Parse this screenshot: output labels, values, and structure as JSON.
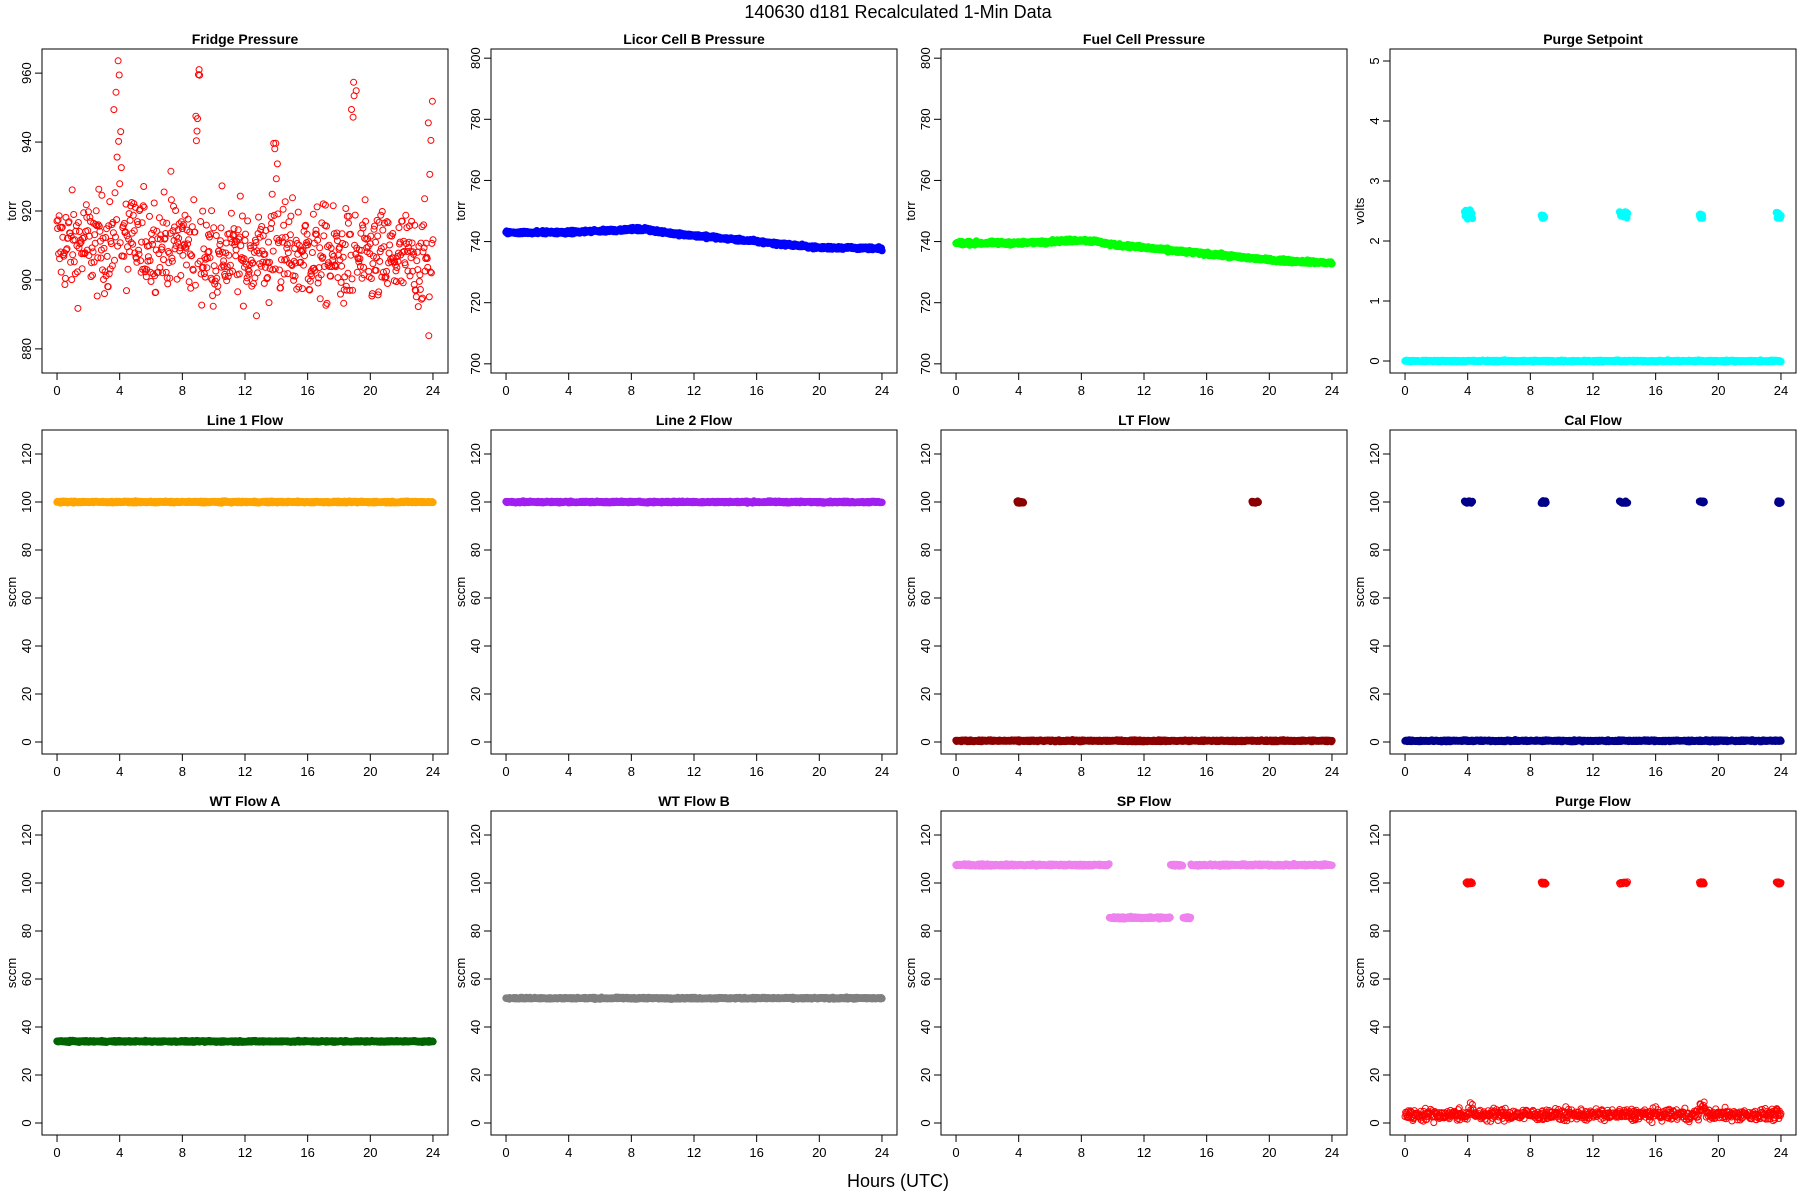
{
  "figure": {
    "title": "140630   d181   Recalculated 1-Min Data",
    "xlabel": "Hours (UTC)"
  },
  "chart_data": [
    {
      "type": "scatter",
      "title": "Fridge Pressure",
      "ylabel": "torr",
      "color": "#ff0000",
      "marker": "open",
      "ylim": [
        873,
        967
      ],
      "yticks": [
        880,
        900,
        920,
        940,
        960
      ],
      "xlim": [
        0,
        24
      ],
      "xticks": [
        0,
        4,
        8,
        12,
        16,
        20,
        24
      ],
      "pattern": {
        "kind": "noisy",
        "base": 910,
        "noise": 7,
        "trend": [
          [
            0,
            910
          ],
          [
            8,
            911
          ],
          [
            10,
            907
          ],
          [
            16,
            908
          ],
          [
            18,
            906
          ],
          [
            24,
            906
          ]
        ],
        "spikes": [
          [
            3.6,
            4.1,
            [
              925,
              966
            ]
          ],
          [
            8.8,
            9.1,
            [
              935,
              962
            ]
          ],
          [
            13.7,
            14.1,
            [
              915,
              941
            ]
          ],
          [
            18.8,
            19.1,
            [
              915,
              959
            ]
          ],
          [
            23.7,
            24.0,
            [
              880,
              954
            ]
          ]
        ]
      }
    },
    {
      "type": "scatter",
      "title": "Licor Cell B Pressure",
      "ylabel": "torr",
      "color": "#0000ff",
      "marker": "filled",
      "ylim": [
        697,
        803
      ],
      "yticks": [
        700,
        720,
        740,
        760,
        780,
        800
      ],
      "xlim": [
        0,
        24
      ],
      "xticks": [
        0,
        4,
        8,
        12,
        16,
        20,
        24
      ],
      "pattern": {
        "kind": "smooth",
        "points": [
          [
            0,
            743
          ],
          [
            4,
            743
          ],
          [
            8,
            744
          ],
          [
            9,
            744
          ],
          [
            10,
            743
          ],
          [
            12,
            742
          ],
          [
            14,
            741
          ],
          [
            16,
            740
          ],
          [
            18,
            739
          ],
          [
            20,
            738
          ],
          [
            22,
            738
          ],
          [
            24,
            737.5
          ]
        ]
      }
    },
    {
      "type": "scatter",
      "title": "Fuel Cell Pressure",
      "ylabel": "torr",
      "color": "#00ff00",
      "marker": "filled",
      "ylim": [
        697,
        803
      ],
      "yticks": [
        700,
        720,
        740,
        760,
        780,
        800
      ],
      "xlim": [
        0,
        24
      ],
      "xticks": [
        0,
        4,
        8,
        12,
        16,
        20,
        24
      ],
      "pattern": {
        "kind": "smooth",
        "points": [
          [
            0,
            739.5
          ],
          [
            4,
            739.5
          ],
          [
            8,
            740.5
          ],
          [
            9,
            740
          ],
          [
            10,
            739
          ],
          [
            12,
            738
          ],
          [
            14,
            737
          ],
          [
            16,
            736
          ],
          [
            18,
            735
          ],
          [
            20,
            734
          ],
          [
            22,
            733.5
          ],
          [
            24,
            733
          ]
        ]
      }
    },
    {
      "type": "scatter",
      "title": "Purge Setpoint",
      "ylabel": "volts",
      "color": "#00ffff",
      "marker": "filled",
      "ylim": [
        -0.2,
        5.2
      ],
      "yticks": [
        0,
        1,
        2,
        3,
        4,
        5
      ],
      "xlim": [
        0,
        24
      ],
      "xticks": [
        0,
        4,
        8,
        12,
        16,
        20,
        24
      ],
      "pattern": {
        "kind": "flat",
        "value": 0,
        "events": [
          [
            3.8,
            4.3,
            [
              2.35,
              2.52
            ]
          ],
          [
            8.7,
            8.9,
            [
              2.38,
              2.44
            ]
          ],
          [
            13.7,
            14.2,
            [
              2.38,
              2.52
            ]
          ],
          [
            18.8,
            19.0,
            [
              2.38,
              2.46
            ]
          ],
          [
            23.7,
            24.0,
            [
              2.38,
              2.48
            ]
          ]
        ]
      }
    },
    {
      "type": "scatter",
      "title": "Line 1 Flow",
      "ylabel": "sccm",
      "color": "#ffa500",
      "marker": "filled",
      "ylim": [
        -5,
        130
      ],
      "yticks": [
        0,
        20,
        40,
        60,
        80,
        100,
        120
      ],
      "xlim": [
        0,
        24
      ],
      "xticks": [
        0,
        4,
        8,
        12,
        16,
        20,
        24
      ],
      "pattern": {
        "kind": "flat",
        "value": 100
      }
    },
    {
      "type": "scatter",
      "title": "Line 2 Flow",
      "ylabel": "sccm",
      "color": "#a020f0",
      "marker": "filled",
      "ylim": [
        -5,
        130
      ],
      "yticks": [
        0,
        20,
        40,
        60,
        80,
        100,
        120
      ],
      "xlim": [
        0,
        24
      ],
      "xticks": [
        0,
        4,
        8,
        12,
        16,
        20,
        24
      ],
      "pattern": {
        "kind": "flat",
        "value": 100
      }
    },
    {
      "type": "scatter",
      "title": "LT Flow",
      "ylabel": "sccm",
      "color": "#8b0000",
      "marker": "filled",
      "ylim": [
        -5,
        130
      ],
      "yticks": [
        0,
        20,
        40,
        60,
        80,
        100,
        120
      ],
      "xlim": [
        0,
        24
      ],
      "xticks": [
        0,
        4,
        8,
        12,
        16,
        20,
        24
      ],
      "pattern": {
        "kind": "flat",
        "value": 0.5,
        "events": [
          [
            3.9,
            4.3,
            [
              99.5,
              100.5
            ]
          ],
          [
            18.9,
            19.3,
            [
              99.5,
              100.5
            ]
          ]
        ]
      }
    },
    {
      "type": "scatter",
      "title": "Cal Flow",
      "ylabel": "sccm",
      "color": "#00008b",
      "marker": "filled",
      "ylim": [
        -5,
        130
      ],
      "yticks": [
        0,
        20,
        40,
        60,
        80,
        100,
        120
      ],
      "xlim": [
        0,
        24
      ],
      "xticks": [
        0,
        4,
        8,
        12,
        16,
        20,
        24
      ],
      "pattern": {
        "kind": "flat",
        "value": 0.5,
        "events": [
          [
            3.8,
            4.3,
            [
              99.5,
              100.5
            ]
          ],
          [
            8.7,
            9.0,
            [
              99.5,
              100.5
            ]
          ],
          [
            13.7,
            14.2,
            [
              99.5,
              100.5
            ]
          ],
          [
            18.8,
            19.1,
            [
              99.5,
              100.5
            ]
          ],
          [
            23.8,
            24.0,
            [
              99.5,
              100.5
            ]
          ]
        ]
      }
    },
    {
      "type": "scatter",
      "title": "WT Flow A",
      "ylabel": "sccm",
      "color": "#006400",
      "marker": "filled",
      "ylim": [
        -5,
        130
      ],
      "yticks": [
        0,
        20,
        40,
        60,
        80,
        100,
        120
      ],
      "xlim": [
        0,
        24
      ],
      "xticks": [
        0,
        4,
        8,
        12,
        16,
        20,
        24
      ],
      "pattern": {
        "kind": "flat",
        "value": 34
      }
    },
    {
      "type": "scatter",
      "title": "WT Flow B",
      "ylabel": "sccm",
      "color": "#808080",
      "marker": "filled",
      "ylim": [
        -5,
        130
      ],
      "yticks": [
        0,
        20,
        40,
        60,
        80,
        100,
        120
      ],
      "xlim": [
        0,
        24
      ],
      "xticks": [
        0,
        4,
        8,
        12,
        16,
        20,
        24
      ],
      "pattern": {
        "kind": "flat",
        "value": 52
      }
    },
    {
      "type": "scatter",
      "title": "SP Flow",
      "ylabel": "sccm",
      "color": "#ee82ee",
      "marker": "filled",
      "ylim": [
        -5,
        130
      ],
      "yticks": [
        0,
        20,
        40,
        60,
        80,
        100,
        120
      ],
      "xlim": [
        0,
        24
      ],
      "xticks": [
        0,
        4,
        8,
        12,
        16,
        20,
        24
      ],
      "pattern": {
        "kind": "segments",
        "segments": [
          [
            0,
            9.8,
            107.5
          ],
          [
            9.8,
            13.7,
            85.5
          ],
          [
            13.7,
            14.5,
            107.5
          ],
          [
            14.5,
            15.0,
            85.5
          ],
          [
            15.0,
            24,
            107.5
          ]
        ]
      }
    },
    {
      "type": "scatter",
      "title": "Purge Flow",
      "ylabel": "sccm",
      "color": "#ff0000",
      "marker": "open",
      "ylim": [
        -5,
        130
      ],
      "yticks": [
        0,
        20,
        40,
        60,
        80,
        100,
        120
      ],
      "xlim": [
        0,
        24
      ],
      "xticks": [
        0,
        4,
        8,
        12,
        16,
        20,
        24
      ],
      "pattern": {
        "kind": "noisy",
        "base": 3.5,
        "noise": 1.2,
        "trend": [
          [
            0,
            3.5
          ],
          [
            24,
            3.5
          ]
        ],
        "spikes": [
          [
            4.0,
            4.3,
            [
              5,
              9
            ]
          ],
          [
            18.8,
            19.2,
            [
              5,
              9
            ]
          ]
        ],
        "events": [
          [
            3.9,
            4.3,
            [
              99.5,
              100.5
            ]
          ],
          [
            8.7,
            9.0,
            [
              99.5,
              100.5
            ]
          ],
          [
            13.7,
            14.2,
            [
              99.5,
              100.5
            ]
          ],
          [
            18.8,
            19.1,
            [
              99.5,
              100.5
            ]
          ],
          [
            23.7,
            24.0,
            [
              99.5,
              100.5
            ]
          ]
        ]
      }
    }
  ]
}
